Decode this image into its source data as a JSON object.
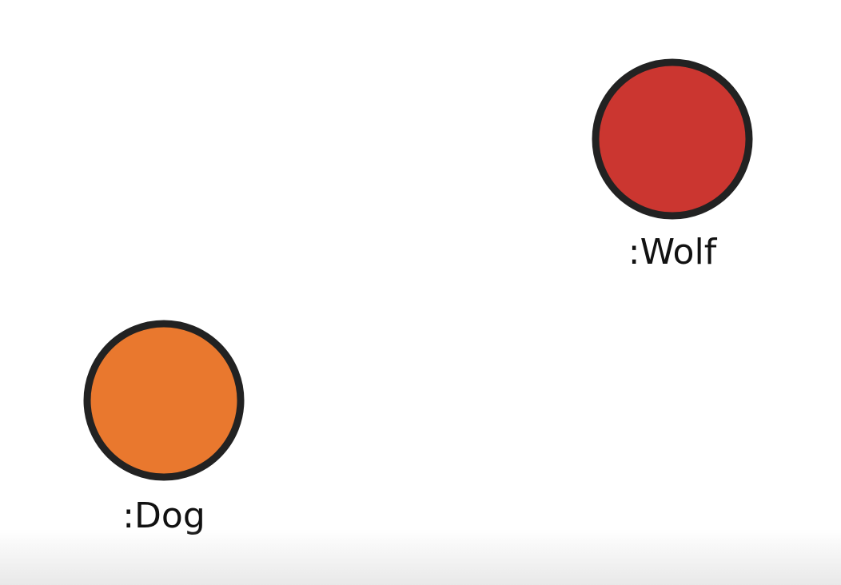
{
  "nodes": [
    {
      "id": "wolf",
      "label": ":Wolf",
      "color": "#CB3630"
    },
    {
      "id": "dog",
      "label": ":Dog",
      "color": "#E9782E"
    }
  ],
  "colors": {
    "outline": "#222222",
    "background": "#ffffff"
  }
}
